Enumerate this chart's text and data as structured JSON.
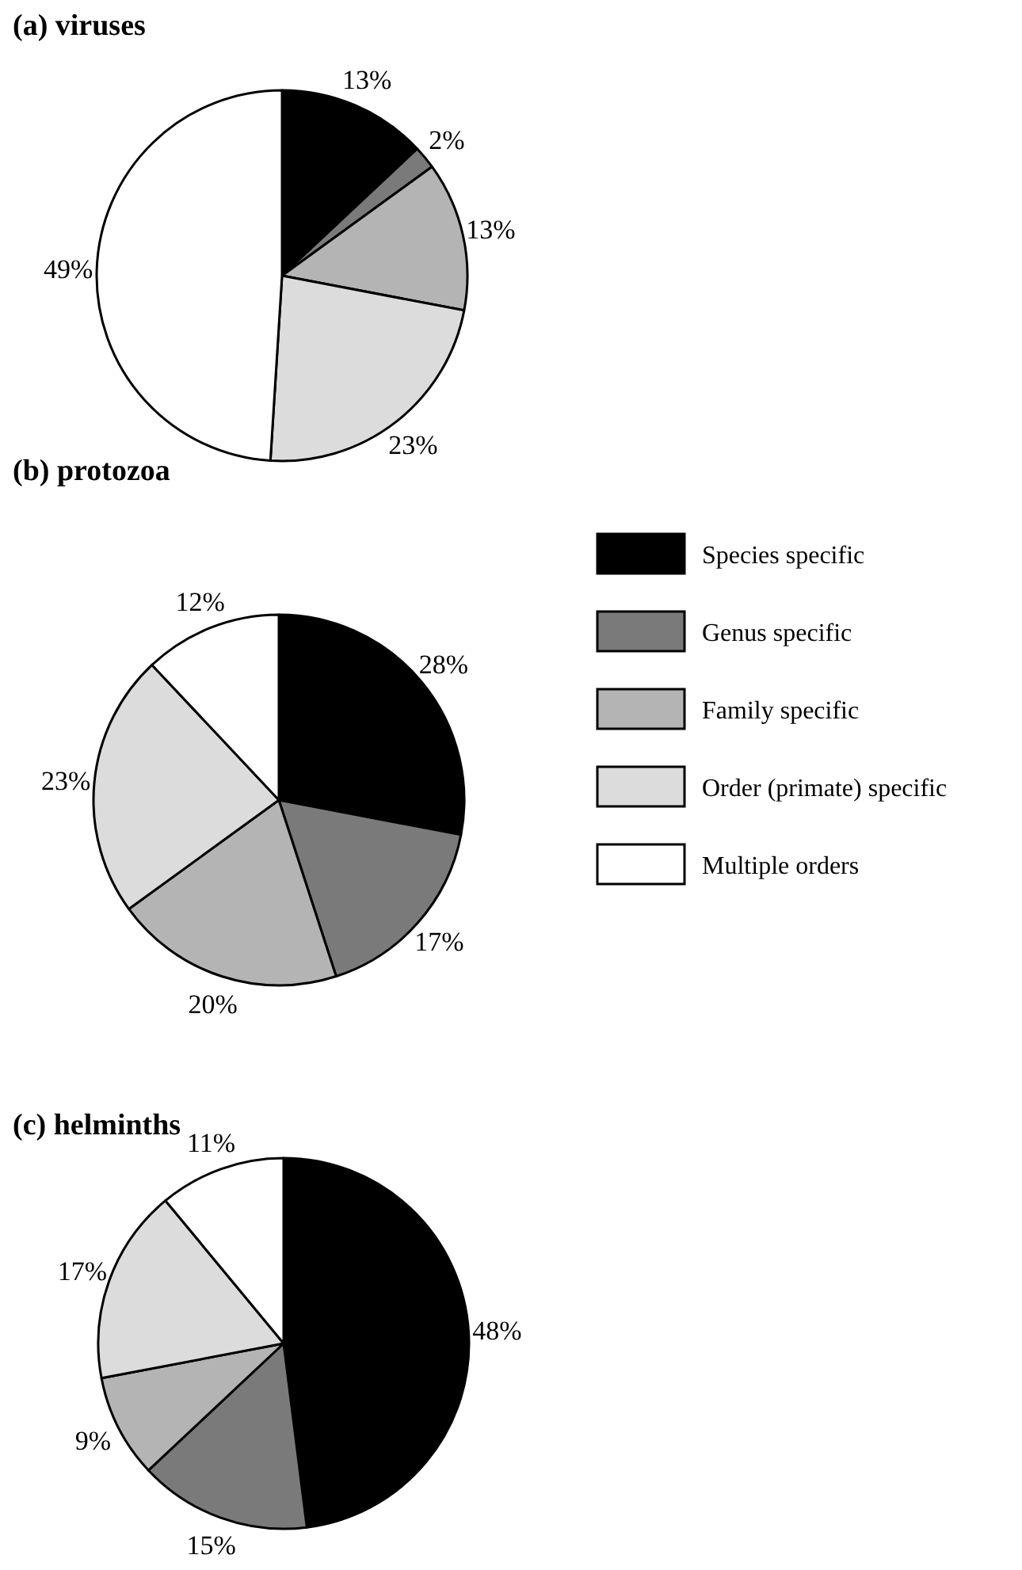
{
  "chart_data": [
    {
      "type": "pie",
      "title": "(a) viruses",
      "categories": [
        null,
        null,
        null,
        null,
        null
      ],
      "values": [
        13,
        2,
        13,
        23,
        49
      ],
      "value_labels": [
        "13%",
        "2%",
        "13%",
        "23%",
        "49%"
      ],
      "colors": [
        "#000000",
        "#7a7a7a",
        "#b4b4b4",
        "#dcdcdc",
        "#ffffff"
      ]
    },
    {
      "type": "pie",
      "title": "(b) protozoa",
      "categories": [
        "Species specific",
        "Genus specific",
        "Family specific",
        "Order (primate) specific",
        "Multiple orders"
      ],
      "values": [
        28,
        17,
        20,
        23,
        12
      ],
      "value_labels": [
        "28%",
        "17%",
        "20%",
        "23%",
        "12%"
      ],
      "colors": [
        "#000000",
        "#7a7a7a",
        "#b4b4b4",
        "#dcdcdc",
        "#ffffff"
      ],
      "legend": "right"
    },
    {
      "type": "pie",
      "title": "(c) helminths",
      "categories": [
        null,
        null,
        null,
        null,
        null
      ],
      "values": [
        48,
        15,
        9,
        17,
        11
      ],
      "value_labels": [
        "48%",
        "15%",
        "9%",
        "17%",
        "11%"
      ],
      "colors": [
        "#000000",
        "#7a7a7a",
        "#b4b4b4",
        "#dcdcdc",
        "#ffffff"
      ]
    }
  ]
}
